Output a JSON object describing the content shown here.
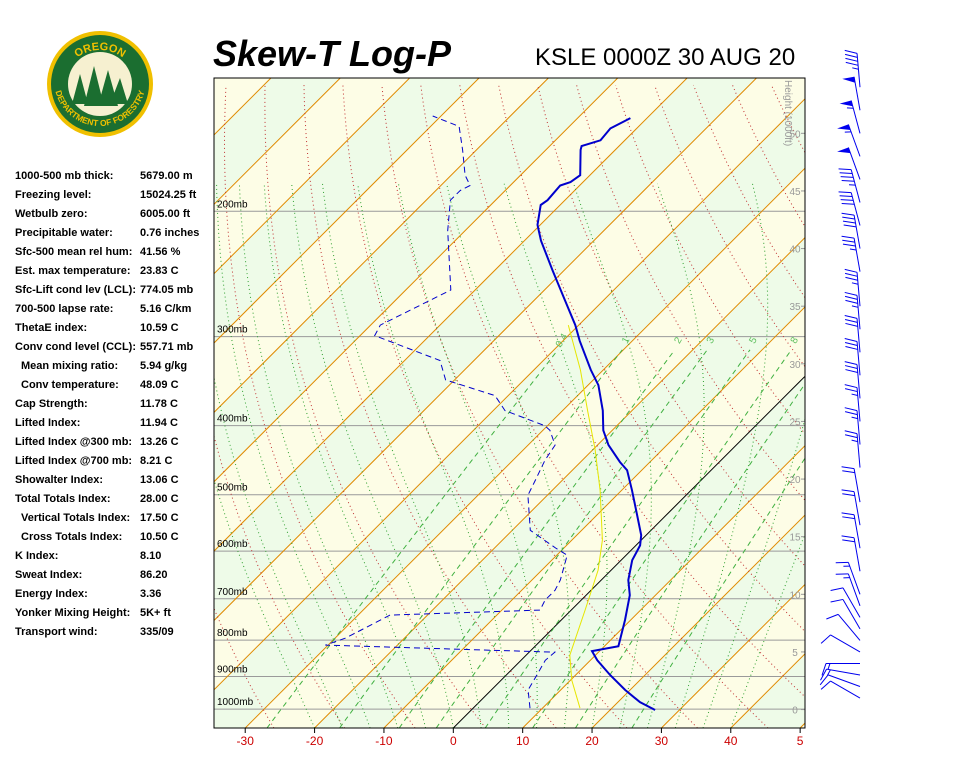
{
  "logo": {
    "top": "OREGON",
    "bottom": "DEPARTMENT OF FORESTRY"
  },
  "indices": [
    [
      "1000-500 mb thick:",
      "5679.00 m"
    ],
    [
      "Freezing level:",
      "15024.25 ft"
    ],
    [
      "Wetbulb zero:",
      "6005.00 ft"
    ],
    [
      "Precipitable water:",
      "0.76 inches"
    ],
    [
      "Sfc-500 mean rel hum:",
      "41.56 %"
    ],
    [
      "Est. max temperature:",
      "23.83 C"
    ],
    [
      "Sfc-Lift cond lev (LCL):",
      "774.05 mb"
    ],
    [
      "700-500 lapse rate:",
      "5.16 C/km"
    ],
    [
      "ThetaE index:",
      "10.59 C"
    ],
    [
      "Conv cond level (CCL):",
      "557.71 mb"
    ],
    [
      "Mean mixing ratio:",
      "5.94 g/kg"
    ],
    [
      "Conv temperature:",
      "48.09 C"
    ],
    [
      "Cap Strength:",
      "11.78 C"
    ],
    [
      "Lifted Index:",
      "11.94 C"
    ],
    [
      "Lifted Index @300 mb:",
      "13.26 C"
    ],
    [
      "Lifted Index @700 mb:",
      "8.21 C"
    ],
    [
      "Showalter Index:",
      "13.06 C"
    ],
    [
      "Total Totals Index:",
      "28.00 C"
    ],
    [
      "Vertical Totals Index:",
      "17.50 C"
    ],
    [
      "Cross Totals Index:",
      "10.50 C"
    ],
    [
      "K Index:",
      "8.10"
    ],
    [
      "Sweat Index:",
      "86.20"
    ],
    [
      "Energy Index:",
      "3.36"
    ],
    [
      "Yonker Mixing Height:",
      "5K+ ft"
    ],
    [
      "Transport wind:",
      "335/09"
    ]
  ],
  "chart_data": {
    "type": "skewt",
    "title": "Skew-T Log-P",
    "subtitle": "KSLE 0000Z 30 AUG 20",
    "xlim": [
      -34.5,
      50.7
    ],
    "xticks": [
      -30,
      -20,
      -10,
      0,
      10,
      20,
      30,
      40,
      {
        "value": 50,
        "label": "5"
      }
    ],
    "ylim": [
      1063,
      130
    ],
    "log_y": true,
    "yticks": [
      {
        "value": 200,
        "label": "200mb"
      },
      {
        "value": 300,
        "label": "300mb"
      },
      {
        "value": 400,
        "label": "400mb"
      },
      {
        "value": 500,
        "label": "500mb"
      },
      {
        "value": 600,
        "label": "600mb"
      },
      {
        "value": 700,
        "label": "700mb"
      },
      {
        "value": 800,
        "label": "800mb"
      },
      {
        "value": 900,
        "label": "900mb"
      },
      {
        "value": 1000,
        "label": "1000mb"
      }
    ],
    "y2label": "Height (1000ft)",
    "y2lim": [
      -1.6,
      54.8
    ],
    "y2ticks": [
      0,
      5,
      10,
      15,
      20,
      25,
      30,
      35,
      40,
      45,
      50
    ],
    "mixing_ratio_labels": [
      "0.4",
      "1",
      "2",
      "3",
      "5",
      "8"
    ],
    "series": [
      {
        "color": "#0000cc",
        "dash": false,
        "x": [
          26.5,
          23.2,
          19.3,
          15.0,
          11.0,
          8.9,
          12.0,
          9.2,
          6.3,
          3.9,
          1.6,
          0.6,
          -0.7,
          -4.2,
          -8.5,
          -12.1,
          -14.3,
          -18.4,
          -21.3,
          -24.2,
          -28.5,
          -31.8,
          -37.6,
          -40.5,
          -45.5,
          -51.7,
          -57.6,
          -60.4,
          -62.8,
          -62.5,
          -62.8,
          -61.8,
          -61.4,
          -65.0,
          -65.4,
          -63.5,
          -63.8,
          -62.4
        ],
        "y": [
          1003,
          978,
          940,
          896,
          854,
          829,
          816,
          750,
          692,
          659,
          618,
          589,
          570,
          534,
          493,
          462,
          450,
          426,
          406,
          381,
          351,
          334,
          304,
          289,
          267,
          242,
          220,
          209,
          196,
          193,
          184,
          182,
          178,
          164,
          162,
          159,
          153,
          148
        ]
      },
      {
        "color": "#0000cc",
        "dash": true,
        "x": [
          8.2,
          5.3,
          4.6,
          3.5,
          3.7,
          -30.4,
          -28.5,
          -25.4,
          -4.5,
          -5.2,
          -5.2,
          -5.9,
          -8.5,
          -11.2,
          -17.4,
          -22.8,
          -23.9,
          -25.4,
          -26.1,
          -29.0,
          -30.4,
          -38.3,
          -41.9,
          -51.3,
          -54.9,
          -67.9,
          -68.6,
          -66.4,
          -63.5,
          -72.5,
          -76.5,
          -76.5,
          -75.8,
          -78.0,
          -82.0,
          -85.9,
          -91.2
        ],
        "y": [
          997,
          940,
          905,
          854,
          832,
          813,
          795,
          738,
          726,
          703,
          681,
          659,
          608,
          594,
          561,
          501,
          477,
          447,
          426,
          406,
          400,
          381,
          363,
          345,
          324,
          299,
          289,
          275,
          258,
          213,
          193,
          187,
          184,
          178,
          164,
          152,
          147
        ]
      },
      {
        "color": "#e6e600",
        "dash": false,
        "x": [
          15.4,
          10.2,
          6.3,
          2.0,
          -1.9,
          -5.6,
          -13.1,
          -19.6,
          -26.4,
          -33.3,
          -41.5
        ],
        "y": [
          997,
          911,
          840,
          726,
          638,
          579,
          493,
          433,
          381,
          334,
          289
        ]
      }
    ],
    "winds": {
      "height": [
        1,
        2,
        3,
        4,
        5,
        6,
        7,
        8,
        9,
        10,
        12,
        14,
        16,
        18,
        21,
        23,
        25,
        27,
        29,
        31,
        33,
        35,
        38,
        40,
        42,
        44,
        46,
        48,
        50,
        52,
        54
      ],
      "speed": [
        10,
        10,
        15,
        15,
        10,
        10,
        10,
        10,
        15,
        15,
        20,
        20,
        20,
        20,
        25,
        25,
        25,
        30,
        30,
        30,
        35,
        35,
        35,
        40,
        40,
        45,
        50,
        55,
        55,
        50,
        45
      ],
      "direction": [
        300,
        290,
        280,
        270,
        300,
        320,
        330,
        330,
        340,
        340,
        350,
        350,
        350,
        350,
        355,
        355,
        355,
        355,
        355,
        355,
        355,
        355,
        350,
        350,
        345,
        345,
        340,
        340,
        345,
        350,
        355
      ]
    }
  }
}
